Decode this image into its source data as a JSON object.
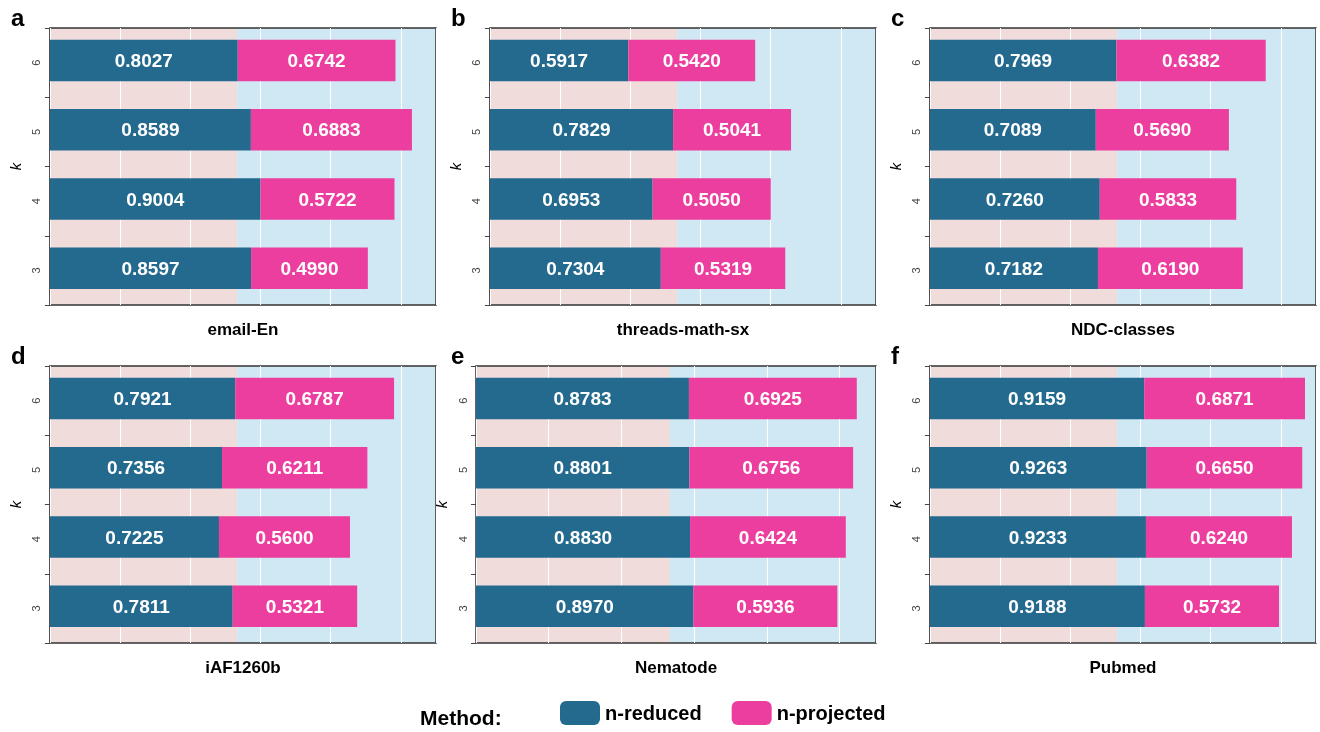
{
  "chart_data": [
    {
      "type": "bar",
      "title": "a",
      "xlabel": "email-En",
      "ylabel": "k",
      "orientation": "horizontal",
      "stacked": true,
      "categories": [
        "6",
        "5",
        "4",
        "3"
      ],
      "xlim": [
        0,
        1.65
      ],
      "tick_labels": "y",
      "grid": "x",
      "bands": [
        {
          "axis": "x",
          "from": 0,
          "to": 0.8,
          "color": "#f1dcdc"
        },
        {
          "axis": "x",
          "from": 0.8,
          "to": 1.65,
          "color": "#d0e8f3"
        }
      ],
      "series": [
        {
          "color": "#236a8e",
          "values": [
            0.8027,
            0.8589,
            0.9004,
            0.8597
          ],
          "value_labels": [
            "0.8027",
            "0.8589",
            "0.9004",
            "0.8597"
          ]
        },
        {
          "color": "#ec3e9e",
          "values": [
            0.6742,
            0.6883,
            0.5722,
            0.499
          ],
          "value_labels": [
            "0.6742",
            "0.6883",
            "0.5722",
            "0.4990"
          ]
        }
      ]
    },
    {
      "type": "bar",
      "title": "b",
      "xlabel": "threads-math-sx",
      "ylabel": "k",
      "orientation": "horizontal",
      "stacked": true,
      "categories": [
        "6",
        "5",
        "4",
        "3"
      ],
      "xlim": [
        0,
        1.65
      ],
      "tick_labels": "y",
      "grid": "x",
      "bands": [
        {
          "axis": "x",
          "from": 0,
          "to": 0.8,
          "color": "#f1dcdc"
        },
        {
          "axis": "x",
          "from": 0.8,
          "to": 1.65,
          "color": "#d0e8f3"
        }
      ],
      "series": [
        {
          "color": "#236a8e",
          "values": [
            0.5917,
            0.7829,
            0.6953,
            0.7304
          ],
          "value_labels": [
            "0.5917",
            "0.7829",
            "0.6953",
            "0.7304"
          ]
        },
        {
          "color": "#ec3e9e",
          "values": [
            0.542,
            0.5041,
            0.505,
            0.5319
          ],
          "value_labels": [
            "0.5420",
            "0.5041",
            "0.5050",
            "0.5319"
          ]
        }
      ]
    },
    {
      "type": "bar",
      "title": "c",
      "xlabel": "NDC-classes",
      "ylabel": "k",
      "orientation": "horizontal",
      "stacked": true,
      "categories": [
        "6",
        "5",
        "4",
        "3"
      ],
      "xlim": [
        0,
        1.65
      ],
      "tick_labels": "y",
      "grid": "x",
      "bands": [
        {
          "axis": "x",
          "from": 0,
          "to": 0.8,
          "color": "#f1dcdc"
        },
        {
          "axis": "x",
          "from": 0.8,
          "to": 1.65,
          "color": "#d0e8f3"
        }
      ],
      "series": [
        {
          "color": "#236a8e",
          "values": [
            0.7969,
            0.7089,
            0.726,
            0.7182
          ],
          "value_labels": [
            "0.7969",
            "0.7089",
            "0.7260",
            "0.7182"
          ]
        },
        {
          "color": "#ec3e9e",
          "values": [
            0.6382,
            0.569,
            0.5833,
            0.619
          ],
          "value_labels": [
            "0.6382",
            "0.5690",
            "0.5833",
            "0.6190"
          ]
        }
      ]
    },
    {
      "type": "bar",
      "title": "d",
      "xlabel": "iAF1260b",
      "ylabel": "k",
      "orientation": "horizontal",
      "stacked": true,
      "categories": [
        "6",
        "5",
        "4",
        "3"
      ],
      "xlim": [
        0,
        1.65
      ],
      "tick_labels": "y",
      "grid": "x",
      "bands": [
        {
          "axis": "x",
          "from": 0,
          "to": 0.8,
          "color": "#f1dcdc"
        },
        {
          "axis": "x",
          "from": 0.8,
          "to": 1.65,
          "color": "#d0e8f3"
        }
      ],
      "series": [
        {
          "color": "#236a8e",
          "values": [
            0.7921,
            0.7356,
            0.7225,
            0.7811
          ],
          "value_labels": [
            "0.7921",
            "0.7356",
            "0.7225",
            "0.7811"
          ]
        },
        {
          "color": "#ec3e9e",
          "values": [
            0.6787,
            0.6211,
            0.56,
            0.5321
          ],
          "value_labels": [
            "0.6787",
            "0.6211",
            "0.5600",
            "0.5321"
          ]
        }
      ]
    },
    {
      "type": "bar",
      "title": "e",
      "xlabel": "Nematode",
      "ylabel": "k",
      "orientation": "horizontal",
      "stacked": true,
      "categories": [
        "6",
        "5",
        "4",
        "3"
      ],
      "xlim": [
        0,
        1.65
      ],
      "tick_labels": "y",
      "grid": "x",
      "legend": "bottom",
      "legend_title": "Method:",
      "bands": [
        {
          "axis": "x",
          "from": 0,
          "to": 0.8,
          "color": "#f1dcdc"
        },
        {
          "axis": "x",
          "from": 0.8,
          "to": 1.65,
          "color": "#d0e8f3"
        }
      ],
      "series": [
        {
          "name": "n-reduced",
          "color": "#236a8e",
          "values": [
            0.8783,
            0.8801,
            0.883,
            0.897
          ],
          "value_labels": [
            "0.8783",
            "0.8801",
            "0.8830",
            "0.8970"
          ]
        },
        {
          "name": "n-projected",
          "color": "#ec3e9e",
          "values": [
            0.6925,
            0.6756,
            0.6424,
            0.5936
          ],
          "value_labels": [
            "0.6925",
            "0.6756",
            "0.6424",
            "0.5936"
          ]
        }
      ]
    },
    {
      "type": "bar",
      "title": "f",
      "xlabel": "Pubmed",
      "ylabel": "k",
      "orientation": "horizontal",
      "stacked": true,
      "categories": [
        "6",
        "5",
        "4",
        "3"
      ],
      "xlim": [
        0,
        1.65
      ],
      "tick_labels": "y",
      "grid": "x",
      "bands": [
        {
          "axis": "x",
          "from": 0,
          "to": 0.8,
          "color": "#f1dcdc"
        },
        {
          "axis": "x",
          "from": 0.8,
          "to": 1.65,
          "color": "#d0e8f3"
        }
      ],
      "series": [
        {
          "color": "#236a8e",
          "values": [
            0.9159,
            0.9263,
            0.9233,
            0.9188
          ],
          "value_labels": [
            "0.9159",
            "0.9263",
            "0.9233",
            "0.9188"
          ]
        },
        {
          "color": "#ec3e9e",
          "values": [
            0.6871,
            0.665,
            0.624,
            0.5732
          ],
          "value_labels": [
            "0.6871",
            "0.6650",
            "0.6240",
            "0.5732"
          ]
        }
      ]
    }
  ]
}
